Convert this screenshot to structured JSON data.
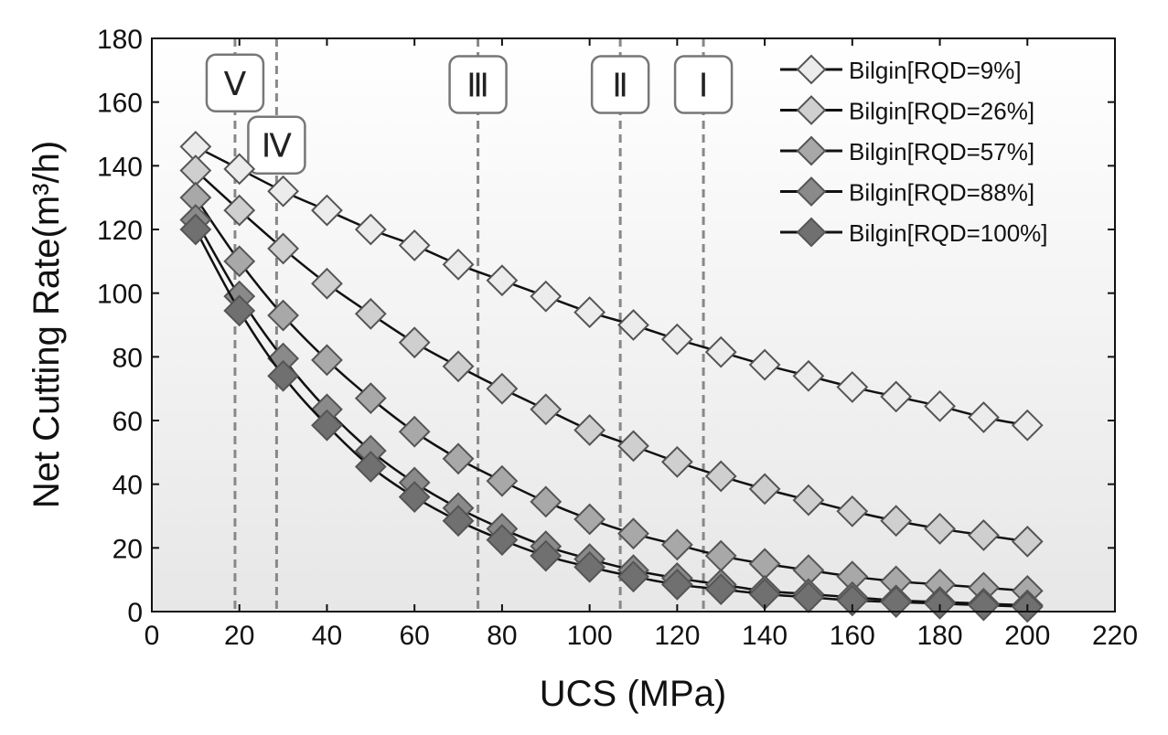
{
  "chart_data": {
    "type": "line",
    "xlabel": "UCS (MPa)",
    "ylabel": "Net Cutting Rate(m³/h)",
    "xlim": [
      0,
      220
    ],
    "ylim": [
      0,
      180
    ],
    "xticks": [
      0,
      20,
      40,
      60,
      80,
      100,
      120,
      140,
      160,
      180,
      200,
      220
    ],
    "yticks": [
      0,
      20,
      40,
      60,
      80,
      100,
      120,
      140,
      160,
      180
    ],
    "x": [
      10,
      20,
      30,
      40,
      50,
      60,
      70,
      80,
      90,
      100,
      110,
      120,
      130,
      140,
      150,
      160,
      170,
      180,
      190,
      200
    ],
    "series": [
      {
        "name": "Bilgin[RQD=9%]",
        "color": "#ececec",
        "values": [
          146,
          139,
          132,
          126,
          120,
          115,
          109,
          104,
          99,
          94,
          90,
          85.5,
          81.5,
          77.5,
          74,
          70.5,
          67.5,
          64.5,
          61,
          58.5
        ]
      },
      {
        "name": "Bilgin[RQD=26%]",
        "color": "#cfcfcf",
        "values": [
          138.5,
          126,
          114,
          103,
          93.5,
          84.5,
          77,
          70,
          63.5,
          57,
          52,
          47,
          42.5,
          38.5,
          35,
          31.5,
          28.5,
          26,
          24,
          22
        ]
      },
      {
        "name": "Bilgin[RQD=57%]",
        "color": "#a8a8a8",
        "values": [
          130,
          110,
          93,
          79,
          67,
          56.5,
          48,
          41,
          34.5,
          29,
          24.5,
          21,
          17.5,
          15,
          13,
          11,
          9.5,
          8.5,
          7.5,
          6.5
        ]
      },
      {
        "name": "Bilgin[RQD=88%]",
        "color": "#8a8a8a",
        "values": [
          123,
          99,
          79.5,
          63.5,
          50.5,
          40.5,
          32.5,
          26,
          20.5,
          16.5,
          13,
          10.5,
          8.5,
          6.5,
          5.5,
          4.5,
          3.5,
          3,
          2.5,
          2
        ]
      },
      {
        "name": "Bilgin[RQD=100%]",
        "color": "#707070",
        "values": [
          120,
          94.5,
          74,
          58.5,
          45.5,
          36,
          28.5,
          22.5,
          17.5,
          14,
          11,
          8.5,
          7,
          5.5,
          4.5,
          3.5,
          3,
          2.5,
          2,
          1.5
        ]
      }
    ],
    "zones": [
      {
        "label": "Ⅴ",
        "x": 19,
        "label_y": 166
      },
      {
        "label": "Ⅳ",
        "x": 28.5,
        "label_y": 146.5
      },
      {
        "label": "Ⅲ",
        "x": 74.5,
        "label_y": 165.5
      },
      {
        "label": "Ⅱ",
        "x": 107,
        "label_y": 165.5
      },
      {
        "label": "Ⅰ",
        "x": 126,
        "label_y": 165.5
      }
    ],
    "legend_position": "top-right",
    "grid": false
  }
}
